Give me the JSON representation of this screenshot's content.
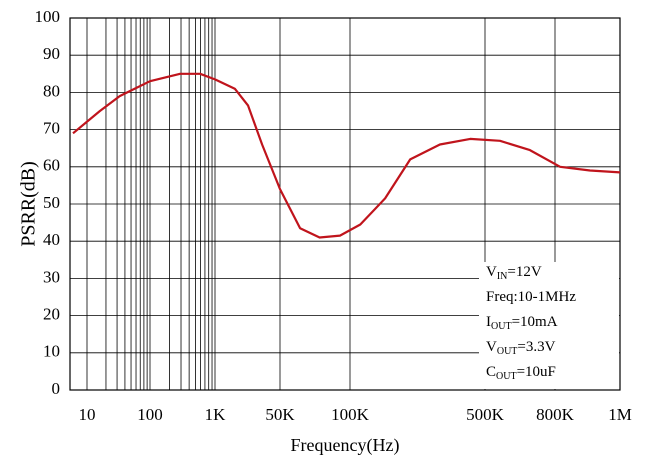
{
  "chart_data": {
    "type": "line",
    "x_scale": "log",
    "xlabel": "Frequency(Hz)",
    "ylabel": "PSRR(dB)",
    "x": [
      6,
      16,
      33,
      100,
      290,
      590,
      1000,
      3300,
      7300,
      17000,
      50000,
      61000,
      74000,
      90600,
      113000,
      152000,
      205000,
      292000,
      419000,
      553000,
      676000,
      814000,
      902000,
      1000000
    ],
    "series": [
      {
        "name": "PSRR",
        "color": "#c0141c",
        "values": [
          69,
          75,
          79,
          83,
          85,
          85,
          83.5,
          81,
          76.5,
          66,
          54,
          43.5,
          41,
          41.5,
          44.5,
          51.5,
          62,
          66,
          67.5,
          67,
          64.5,
          60,
          59,
          58.5
        ]
      }
    ],
    "ylim": [
      0,
      100
    ],
    "yticks": [
      0,
      10,
      20,
      30,
      40,
      50,
      60,
      70,
      80,
      90,
      100
    ],
    "xticks": [
      10,
      100,
      {
        "value": 1000,
        "label": "1K"
      },
      {
        "value": 50000,
        "label": "50K"
      },
      {
        "value": 100000,
        "label": "100K"
      },
      {
        "value": 500000,
        "label": "500K"
      },
      {
        "value": 800000,
        "label": "800K"
      },
      {
        "value": 1000000,
        "label": "1M"
      }
    ],
    "grid": true,
    "annotations": [
      {
        "main": "V",
        "sub": "IN",
        "rest": "=12V"
      },
      {
        "main": "Freq:10-1MHz"
      },
      {
        "main": "I",
        "sub": "OUT",
        "rest": "=10mA"
      },
      {
        "main": "V",
        "sub": "OUT",
        "rest": "=3.3V"
      },
      {
        "main": "C",
        "sub": "OUT",
        "rest": "=10uF"
      }
    ]
  }
}
